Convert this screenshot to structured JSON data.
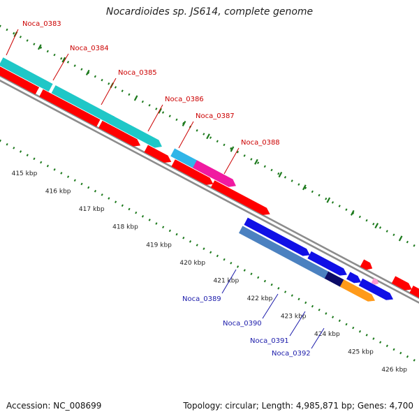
{
  "title": "Nocardioides sp. JS614, complete genome",
  "footer": {
    "accession": "Accession: NC_008699",
    "summary": "Topology: circular; Length: 4,985,871 bp; Genes: 4,700"
  },
  "colors": {
    "forward_label": "#cc0000",
    "reverse_label": "#1a1aaa",
    "backbone": "#8c8c8c",
    "minor_tick": "#1d7a1d",
    "major_tick": "#1d7a1d",
    "red_gene": "#ff0000",
    "cyan_gene": "#1fc7c7",
    "skyblue_gene": "#30b5e8",
    "magenta_gene": "#f01aa0",
    "blue_gene": "#1010e6",
    "steel_gene": "#4b81c0",
    "navy_gene": "#0b0b66",
    "orange_gene": "#ff9a1a",
    "pink_gene": "#ff9ad0"
  },
  "scale_labels": [
    "415 kbp",
    "416 kbp",
    "417 kbp",
    "418 kbp",
    "419 kbp",
    "420 kbp",
    "421 kbp",
    "422 kbp",
    "423 kbp",
    "424 kbp",
    "425 kbp",
    "426 kbp"
  ],
  "gene_labels_forward": [
    "Noca_0383",
    "Noca_0384",
    "Noca_0385",
    "Noca_0386",
    "Noca_0387",
    "Noca_0388"
  ],
  "gene_labels_reverse": [
    "Noca_0389",
    "Noca_0390",
    "Noca_0391",
    "Noca_0392"
  ]
}
